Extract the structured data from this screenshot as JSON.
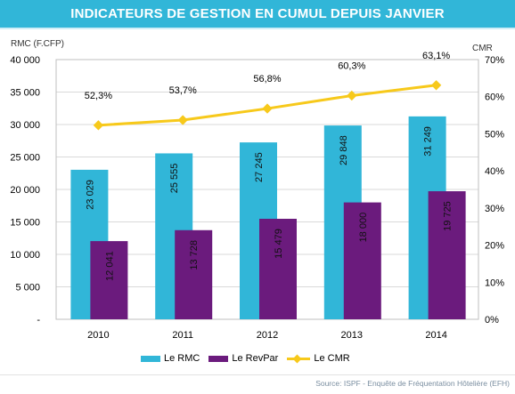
{
  "header": {
    "title": "INDICATEURS DE GESTION EN CUMUL DEPUIS JANVIER"
  },
  "footer": {
    "source": "Source: ISPF - Enquête de Fréquentation Hôtelière (EFH)"
  },
  "chart_data": {
    "type": "bar",
    "categories": [
      "2010",
      "2011",
      "2012",
      "2013",
      "2014"
    ],
    "series": [
      {
        "name": "Le RMC",
        "kind": "bar",
        "axis": "left",
        "color": "#31b6d8",
        "values": [
          23029,
          25555,
          27245,
          29848,
          31249
        ],
        "labels": [
          "23 029",
          "25 555",
          "27 245",
          "29 848",
          "31 249"
        ]
      },
      {
        "name": "Le RevPar",
        "kind": "bar",
        "axis": "left",
        "color": "#6b1b7d",
        "values": [
          12041,
          13728,
          15479,
          18000,
          19725
        ],
        "labels": [
          "12 041",
          "13 728",
          "15 479",
          "18 000",
          "19 725"
        ]
      },
      {
        "name": "Le CMR",
        "kind": "line",
        "axis": "right",
        "color": "#f7c91b",
        "values": [
          52.3,
          53.7,
          56.8,
          60.3,
          63.1
        ],
        "labels": [
          "52,3%",
          "53,7%",
          "56,8%",
          "60,3%",
          "63,1%"
        ]
      }
    ],
    "left_axis": {
      "title": "RMC (F.CFP)",
      "min": 0,
      "max": 40000,
      "ticks": [
        0,
        5000,
        10000,
        15000,
        20000,
        25000,
        30000,
        35000,
        40000
      ],
      "tick_labels": [
        "-",
        "5 000",
        "10 000",
        "15 000",
        "20 000",
        "25 000",
        "30 000",
        "35 000",
        "40 000"
      ]
    },
    "right_axis": {
      "title": "CMR",
      "min": 0,
      "max": 70,
      "ticks": [
        0,
        10,
        20,
        30,
        40,
        50,
        60,
        70
      ],
      "tick_labels": [
        "0%",
        "10%",
        "20%",
        "30%",
        "40%",
        "50%",
        "60%",
        "70%"
      ]
    },
    "grid": true,
    "legend_position": "bottom"
  }
}
